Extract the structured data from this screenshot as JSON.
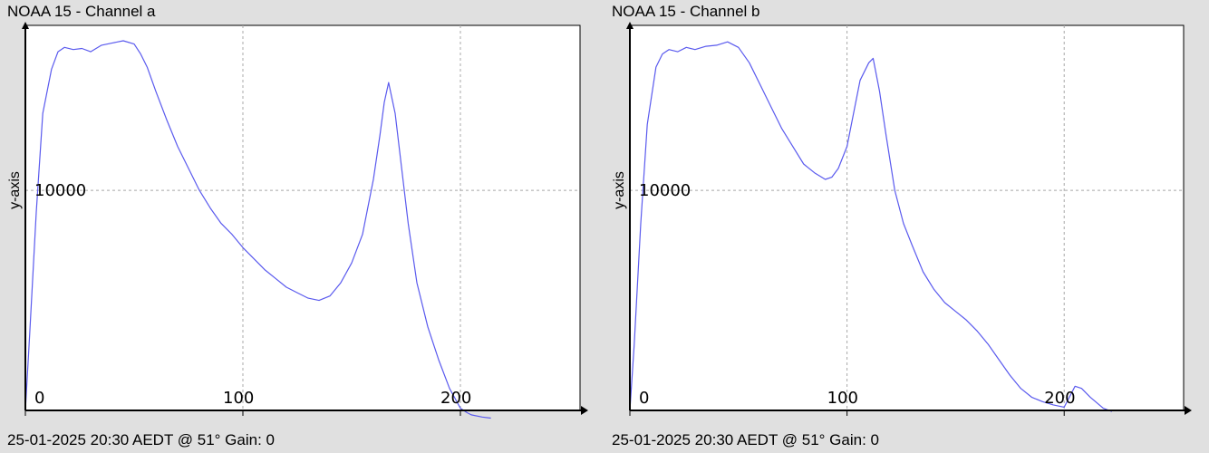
{
  "chart_data": [
    {
      "type": "line",
      "title": "NOAA 15 - Channel a",
      "ylabel": "y-axis",
      "footer": "25-01-2025 20:30 AEDT @ 51° Gain: 0",
      "xlim": [
        0,
        255
      ],
      "ylim": [
        0,
        17500
      ],
      "xticks": [
        0,
        100,
        200
      ],
      "yticks": [
        10000
      ],
      "grid": true,
      "line_color": "#5a5aee",
      "series": [
        {
          "x": [
            0,
            2,
            5,
            8,
            12,
            15,
            18,
            22,
            26,
            30,
            35,
            40,
            45,
            50,
            53,
            56,
            60,
            65,
            70,
            75,
            80,
            85,
            90,
            95,
            100,
            105,
            110,
            115,
            120,
            125,
            130,
            135,
            140,
            145,
            150,
            155,
            160,
            163,
            165,
            167,
            170,
            173,
            176,
            180,
            185,
            190,
            195,
            200,
            203,
            205,
            210,
            214
          ],
          "y": [
            0,
            3500,
            9000,
            13500,
            15500,
            16300,
            16500,
            16400,
            16450,
            16300,
            16600,
            16700,
            16800,
            16650,
            16200,
            15600,
            14500,
            13200,
            12000,
            11000,
            10000,
            9200,
            8500,
            8000,
            7400,
            6900,
            6400,
            6000,
            5600,
            5350,
            5100,
            5000,
            5200,
            5800,
            6700,
            8000,
            10500,
            12500,
            14000,
            14900,
            13500,
            11000,
            8500,
            5800,
            3800,
            2300,
            1000,
            100,
            -100,
            -200,
            -300,
            -350
          ]
        }
      ]
    },
    {
      "type": "line",
      "title": "NOAA 15 - Channel b",
      "ylabel": "y-axis",
      "footer": "25-01-2025 20:30 AEDT @ 51° Gain: 0",
      "xlim": [
        0,
        255
      ],
      "ylim": [
        0,
        17500
      ],
      "xticks": [
        0,
        100,
        200
      ],
      "yticks": [
        10000
      ],
      "grid": true,
      "line_color": "#5a5aee",
      "series": [
        {
          "x": [
            0,
            2,
            5,
            8,
            12,
            15,
            18,
            22,
            26,
            30,
            35,
            40,
            45,
            50,
            55,
            60,
            65,
            70,
            75,
            80,
            85,
            90,
            93,
            96,
            100,
            103,
            106,
            110,
            112,
            115,
            118,
            122,
            126,
            130,
            135,
            140,
            145,
            150,
            155,
            160,
            165,
            170,
            175,
            180,
            185,
            190,
            195,
            200,
            205,
            208,
            212,
            218,
            222
          ],
          "y": [
            0,
            3000,
            8500,
            13000,
            15600,
            16200,
            16400,
            16300,
            16500,
            16400,
            16550,
            16600,
            16750,
            16500,
            15800,
            14800,
            13800,
            12800,
            12000,
            11200,
            10800,
            10500,
            10600,
            11000,
            12000,
            13500,
            15000,
            15800,
            16000,
            14500,
            12500,
            10000,
            8500,
            7500,
            6300,
            5500,
            4900,
            4500,
            4100,
            3600,
            3000,
            2300,
            1600,
            1000,
            600,
            400,
            250,
            150,
            1100,
            1000,
            600,
            100,
            -50
          ]
        }
      ]
    }
  ]
}
